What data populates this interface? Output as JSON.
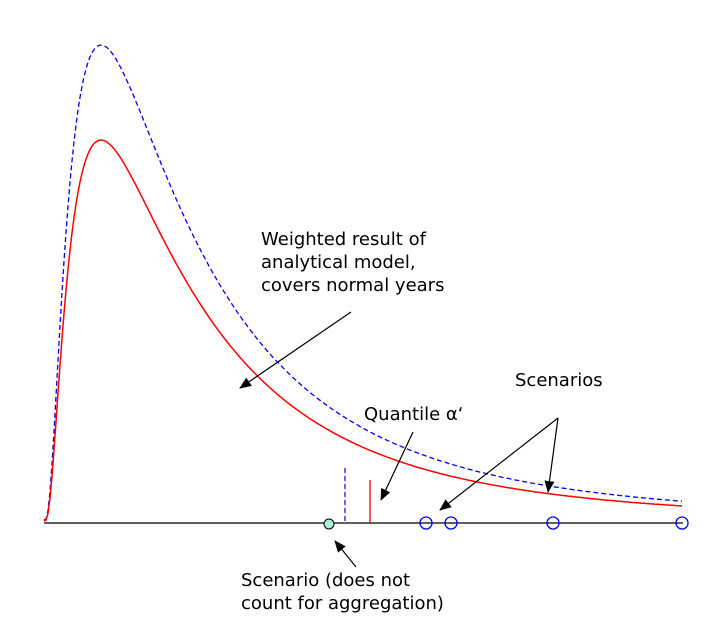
{
  "annotations": {
    "weighted_result": [
      "Weighted result of",
      "analytical model,",
      "covers normal years"
    ],
    "scenarios": "Scenarios",
    "quantile": "Quantile α‘",
    "excluded_scenario": [
      "Scenario (does not",
      "count for aggregation)"
    ]
  },
  "colors": {
    "weighted_curve": "#ff0000",
    "dashed_curve": "#0000ff",
    "scenario_marker": "#0000ff",
    "excluded_marker_fill": "#aaf0d8",
    "axis": "#000000"
  }
}
